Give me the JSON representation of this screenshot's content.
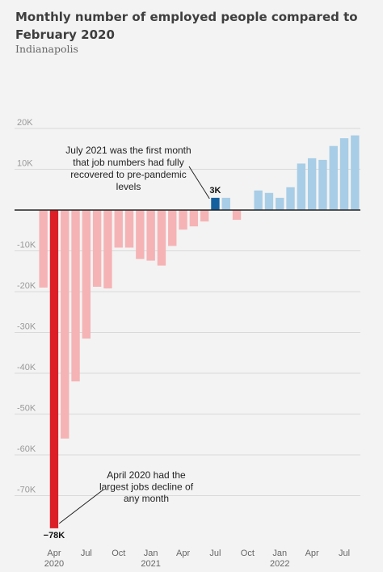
{
  "title": "Monthly number of employed people compared to February 2020",
  "subtitle": "Indianapolis",
  "colors": {
    "negative": "#f5b3b5",
    "negative_highlight": "#dc1f27",
    "positive": "#a8cde6",
    "positive_highlight": "#14609f",
    "grid": "#d9d9d9",
    "axis": "#222222"
  },
  "chart_data": {
    "type": "bar",
    "title": "Monthly number of employed people compared to February 2020",
    "subtitle": "Indianapolis",
    "xlabel": "",
    "ylabel": "",
    "ylim": [
      -80000,
      20000
    ],
    "grid": true,
    "yticks": [
      {
        "value": 20000,
        "label": "20K"
      },
      {
        "value": 10000,
        "label": "10K"
      },
      {
        "value": 0,
        "label": ""
      },
      {
        "value": -10000,
        "label": "-10K"
      },
      {
        "value": -20000,
        "label": "-20K"
      },
      {
        "value": -30000,
        "label": "-30K"
      },
      {
        "value": -40000,
        "label": "-40K"
      },
      {
        "value": -50000,
        "label": "-50K"
      },
      {
        "value": -60000,
        "label": "-60K"
      },
      {
        "value": -70000,
        "label": "-70K"
      }
    ],
    "categories": [
      "Mar 2020",
      "Apr 2020",
      "May 2020",
      "Jun 2020",
      "Jul 2020",
      "Aug 2020",
      "Sep 2020",
      "Oct 2020",
      "Nov 2020",
      "Dec 2020",
      "Jan 2021",
      "Feb 2021",
      "Mar 2021",
      "Apr 2021",
      "May 2021",
      "Jun 2021",
      "Jul 2021",
      "Aug 2021",
      "Sep 2021",
      "Oct 2021",
      "Nov 2021",
      "Dec 2021",
      "Jan 2022",
      "Feb 2022",
      "Mar 2022",
      "Apr 2022",
      "May 2022",
      "Jun 2022",
      "Jul 2022",
      "Aug 2022"
    ],
    "values": [
      -19000,
      -78000,
      -56000,
      -42000,
      -31500,
      -18800,
      -19200,
      -9200,
      -9200,
      -12000,
      -12400,
      -13600,
      -8800,
      -4800,
      -4000,
      -2800,
      3000,
      3000,
      -2400,
      0,
      4800,
      4200,
      3000,
      5600,
      11400,
      12700,
      12300,
      15700,
      17600,
      18300
    ],
    "highlight_indices": [
      1,
      16
    ],
    "xtick_labels": [
      {
        "index": 1,
        "label": "Apr",
        "year": "2020"
      },
      {
        "index": 4,
        "label": "Jul",
        "year": ""
      },
      {
        "index": 7,
        "label": "Oct",
        "year": ""
      },
      {
        "index": 10,
        "label": "Jan",
        "year": "2021"
      },
      {
        "index": 13,
        "label": "Apr",
        "year": ""
      },
      {
        "index": 16,
        "label": "Jul",
        "year": ""
      },
      {
        "index": 19,
        "label": "Oct",
        "year": ""
      },
      {
        "index": 22,
        "label": "Jan",
        "year": "2022"
      },
      {
        "index": 25,
        "label": "Apr",
        "year": ""
      },
      {
        "index": 28,
        "label": "Jul",
        "year": ""
      }
    ],
    "data_labels": [
      {
        "index": 1,
        "text": "−78K"
      },
      {
        "index": 16,
        "text": "3K"
      }
    ],
    "annotations": [
      {
        "index": 16,
        "lines": [
          "July 2021 was the first month",
          "that job numbers had fully",
          "recovered to pre-pandemic",
          "levels"
        ]
      },
      {
        "index": 1,
        "lines": [
          "April 2020 had the",
          "largest jobs decline of",
          "any month"
        ]
      }
    ]
  }
}
